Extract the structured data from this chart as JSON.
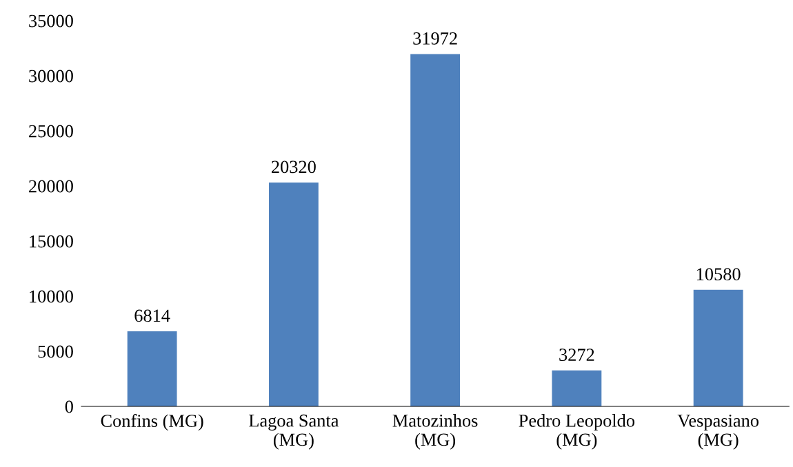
{
  "chart_data": {
    "type": "bar",
    "categories": [
      "Confins (MG)",
      "Lagoa Santa\n(MG)",
      "Matozinhos\n(MG)",
      "Pedro Leopoldo\n(MG)",
      "Vespasiano\n(MG)"
    ],
    "values": [
      6814,
      20320,
      31972,
      3272,
      10580
    ],
    "color": "#4f81bd",
    "ylim": [
      0,
      35000
    ],
    "yticks": [
      0,
      5000,
      10000,
      15000,
      20000,
      25000,
      30000,
      35000
    ],
    "grid": false,
    "data_labels": true
  }
}
